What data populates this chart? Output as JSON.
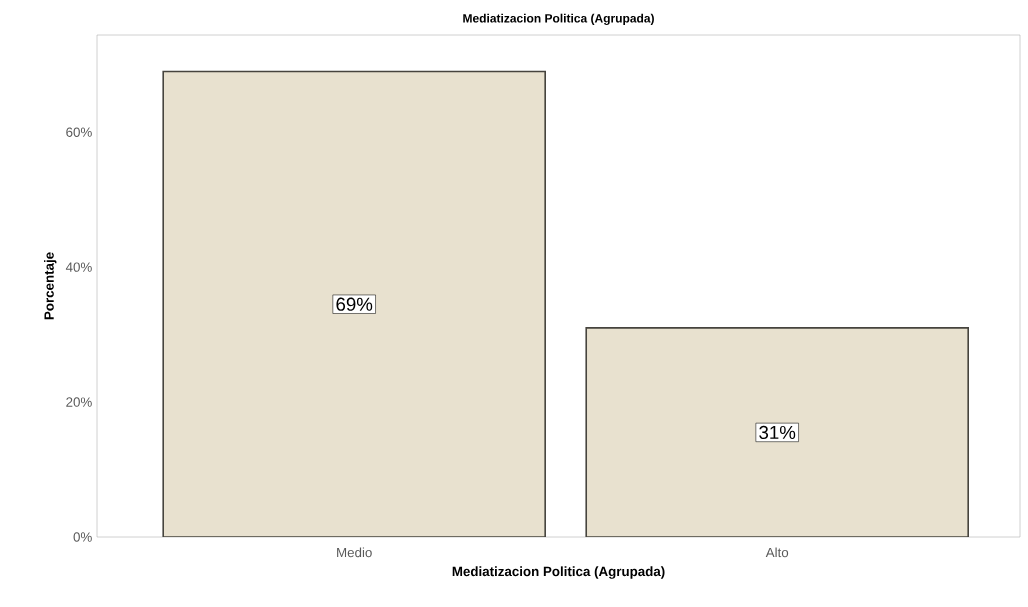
{
  "chart_data": {
    "type": "bar",
    "title": "Mediatizacion Politica (Agrupada)",
    "xlabel": "Mediatizacion Politica (Agrupada)",
    "ylabel": "Porcentaje",
    "categories": [
      "Medio",
      "Alto"
    ],
    "values": [
      69,
      31
    ],
    "value_labels": [
      "69%",
      "31%"
    ],
    "color": "#e8e1cf",
    "ylim": [
      0,
      74.4
    ],
    "yticks": [
      {
        "value": 0,
        "label": "0%"
      },
      {
        "value": 20,
        "label": "20%"
      },
      {
        "value": 40,
        "label": "40%"
      },
      {
        "value": 60,
        "label": "60%"
      }
    ]
  }
}
